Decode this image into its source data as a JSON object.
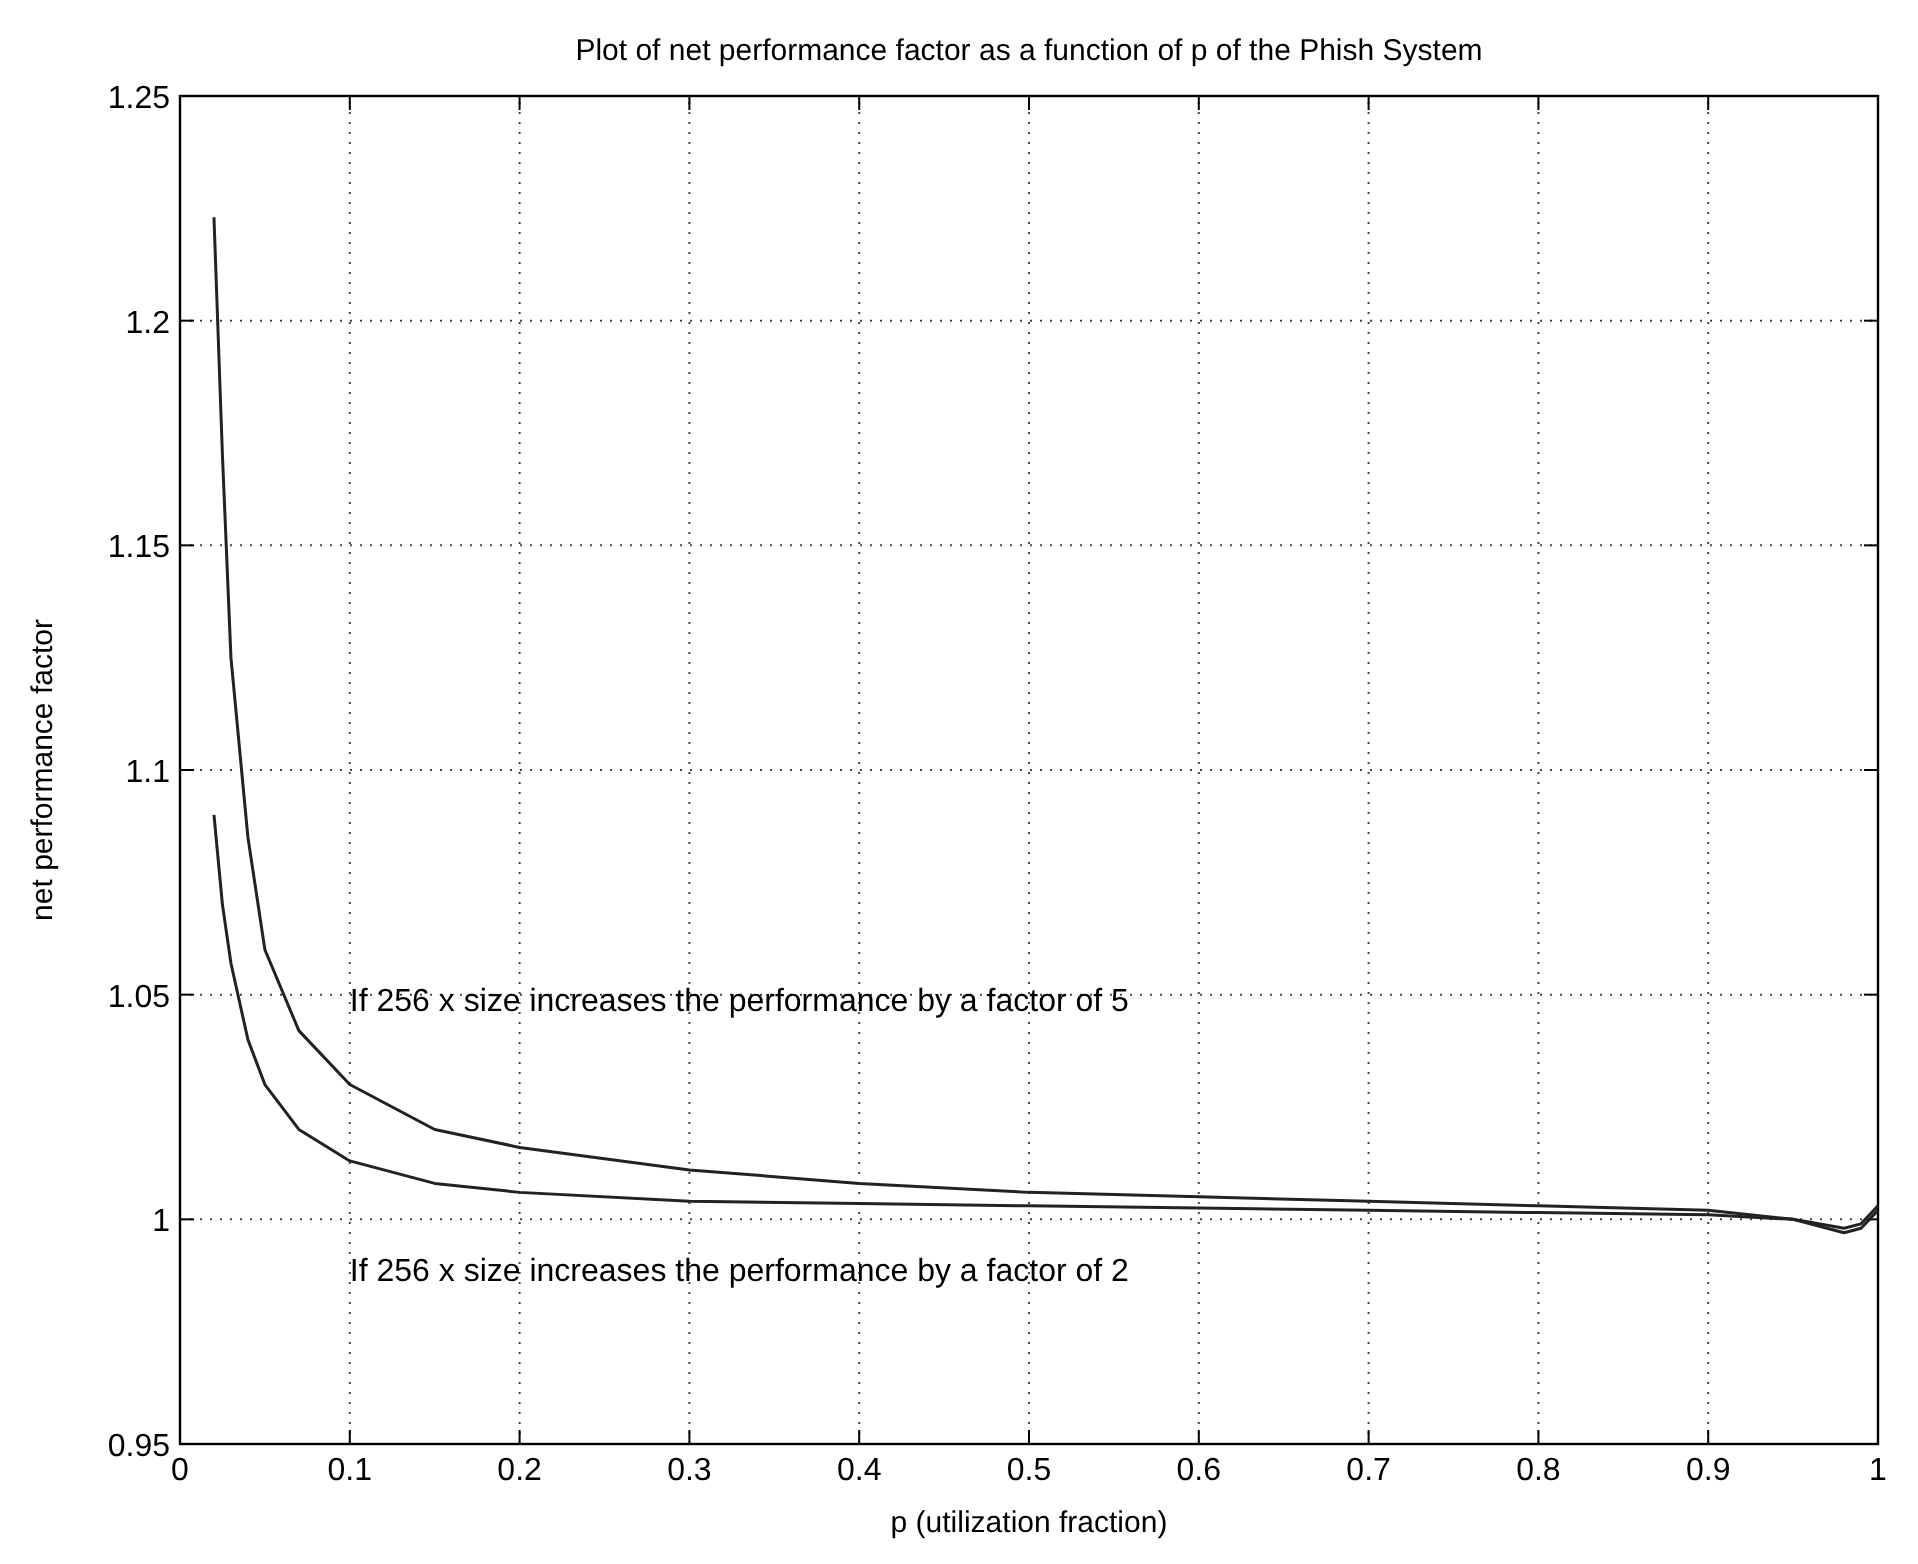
{
  "chart_data": {
    "type": "line",
    "title": "Plot of net performance factor as a function of p of the Phish System",
    "xlabel": "p (utilization fraction)",
    "ylabel": "net performance factor",
    "xlim": [
      0,
      1
    ],
    "xticks": [
      0,
      0.1,
      0.2,
      0.3,
      0.4,
      0.5,
      0.6,
      0.7,
      0.8,
      0.9,
      1
    ],
    "ylim": [
      0.95,
      1.25
    ],
    "yticks": [
      0.95,
      1,
      1.05,
      1.1,
      1.15,
      1.2,
      1.25
    ],
    "grid": true,
    "line_style": "solid",
    "marker": "none",
    "series": [
      {
        "color": "#222222",
        "x": [
          0.02,
          0.025,
          0.03,
          0.04,
          0.05,
          0.07,
          0.1,
          0.15,
          0.2,
          0.3,
          0.4,
          0.5,
          0.6,
          0.7,
          0.8,
          0.9,
          0.95,
          0.98,
          0.99,
          1
        ],
        "values": [
          1.223,
          1.17,
          1.125,
          1.085,
          1.06,
          1.042,
          1.03,
          1.02,
          1.016,
          1.011,
          1.008,
          1.006,
          1.005,
          1.004,
          1.003,
          1.002,
          1.0,
          0.998,
          0.999,
          1.003
        ]
      },
      {
        "color": "#222222",
        "x": [
          0.02,
          0.025,
          0.03,
          0.04,
          0.05,
          0.07,
          0.1,
          0.15,
          0.2,
          0.3,
          0.4,
          0.5,
          0.6,
          0.7,
          0.8,
          0.9,
          0.95,
          0.98,
          0.99,
          1
        ],
        "values": [
          1.09,
          1.07,
          1.057,
          1.04,
          1.03,
          1.02,
          1.013,
          1.008,
          1.006,
          1.004,
          1.0035,
          1.003,
          1.0025,
          1.002,
          1.0015,
          1.001,
          1.0,
          0.997,
          0.998,
          1.002
        ]
      }
    ],
    "annotations": [
      "If 256 x size increases the performance by a factor of 5",
      "If 256 x size increases the performance by a factor of 2"
    ]
  }
}
